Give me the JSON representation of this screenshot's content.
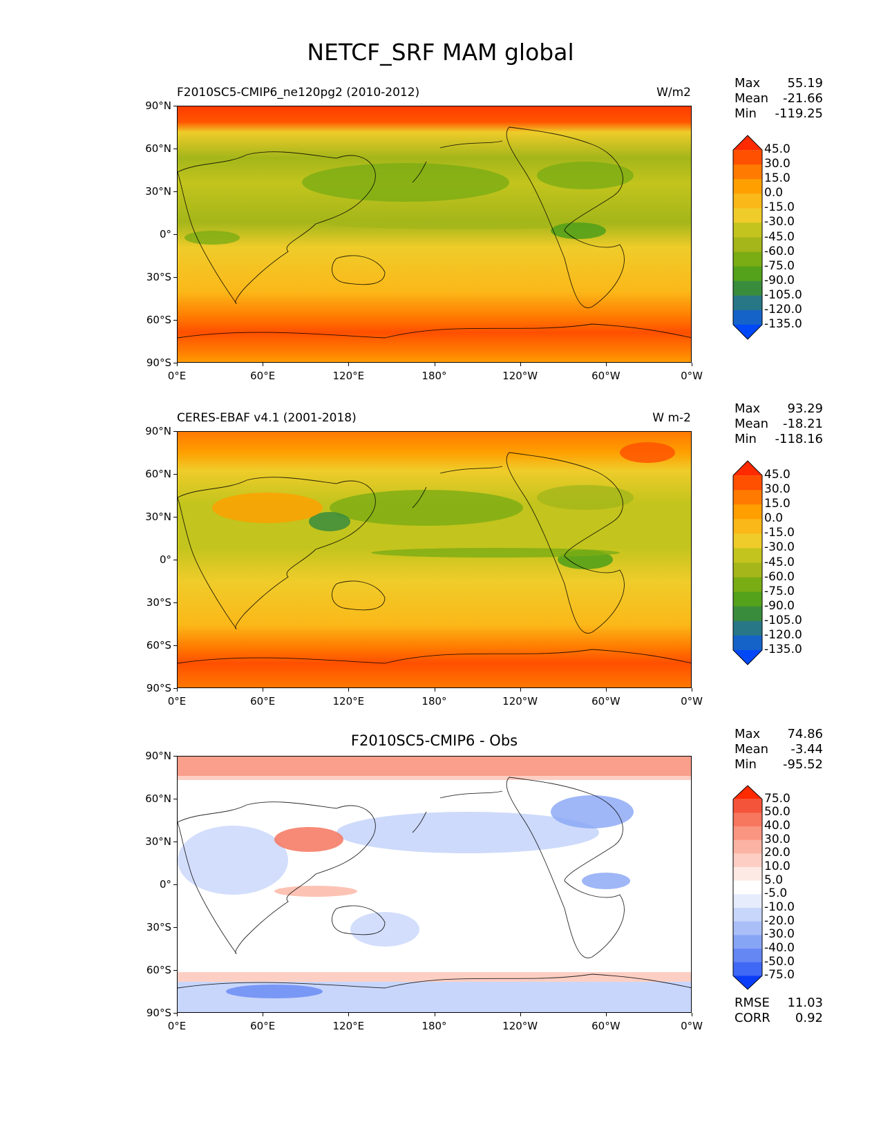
{
  "title": "NETCF_SRF MAM global",
  "lat_labels": [
    "90°N",
    "60°N",
    "30°N",
    "0°",
    "30°S",
    "60°S",
    "90°S"
  ],
  "lon_labels": [
    "0°E",
    "60°E",
    "120°E",
    "180°",
    "120°W",
    "60°W",
    "0°W"
  ],
  "panels": [
    {
      "id": "model",
      "title_left": "F2010SC5-CMIP6_ne120pg2 (2010-2012)",
      "title_right": "W/m2",
      "title_center": "",
      "stats": {
        "max_label": "Max",
        "max": "55.19",
        "mean_label": "Mean",
        "mean": "-21.66",
        "min_label": "Min",
        "min": "-119.25"
      },
      "colorbar_ticks": [
        "45.0",
        "30.0",
        "15.0",
        "0.0",
        "-15.0",
        "-30.0",
        "-45.0",
        "-60.0",
        "-75.0",
        "-90.0",
        "-105.0",
        "-120.0",
        "-135.0"
      ],
      "colorbar_colors": [
        "#ff2a00",
        "#ff4f00",
        "#ff7a00",
        "#ff9f00",
        "#fbb819",
        "#efcc2a",
        "#c3c41d",
        "#a4b61a",
        "#7aac14",
        "#54a11b",
        "#3a8c3d",
        "#287786",
        "#1563c8",
        "#0048f8"
      ]
    },
    {
      "id": "obs",
      "title_left": "CERES-EBAF v4.1 (2001-2018)",
      "title_right": "W m-2",
      "title_center": "",
      "stats": {
        "max_label": "Max",
        "max": "93.29",
        "mean_label": "Mean",
        "mean": "-18.21",
        "min_label": "Min",
        "min": "-118.16"
      },
      "colorbar_ticks": [
        "45.0",
        "30.0",
        "15.0",
        "0.0",
        "-15.0",
        "-30.0",
        "-45.0",
        "-60.0",
        "-75.0",
        "-90.0",
        "-105.0",
        "-120.0",
        "-135.0"
      ],
      "colorbar_colors": [
        "#ff2a00",
        "#ff4f00",
        "#ff7a00",
        "#ff9f00",
        "#fbb819",
        "#efcc2a",
        "#c3c41d",
        "#a4b61a",
        "#7aac14",
        "#54a11b",
        "#3a8c3d",
        "#287786",
        "#1563c8",
        "#0048f8"
      ]
    },
    {
      "id": "diff",
      "title_left": "",
      "title_right": "",
      "title_center": "F2010SC5-CMIP6 - Obs",
      "stats": {
        "max_label": "Max",
        "max": "74.86",
        "mean_label": "Mean",
        "mean": "-3.44",
        "min_label": "Min",
        "min": "-95.52"
      },
      "colorbar_ticks": [
        "75.0",
        "50.0",
        "40.0",
        "30.0",
        "20.0",
        "10.0",
        "5.0",
        "-5.0",
        "-10.0",
        "-20.0",
        "-30.0",
        "-40.0",
        "-50.0",
        "-75.0"
      ],
      "colorbar_colors": [
        "#ff2a00",
        "#f4543a",
        "#f6765e",
        "#f99580",
        "#fbb4a3",
        "#fdcfc4",
        "#feeae5",
        "#ffffff",
        "#e6ecfc",
        "#c8d6fb",
        "#aabff8",
        "#87a5f5",
        "#6587f4",
        "#3f68f5",
        "#0a3df8"
      ],
      "rmse_label": "RMSE",
      "rmse": "11.03",
      "corr_label": "CORR",
      "corr": "0.92"
    }
  ]
}
